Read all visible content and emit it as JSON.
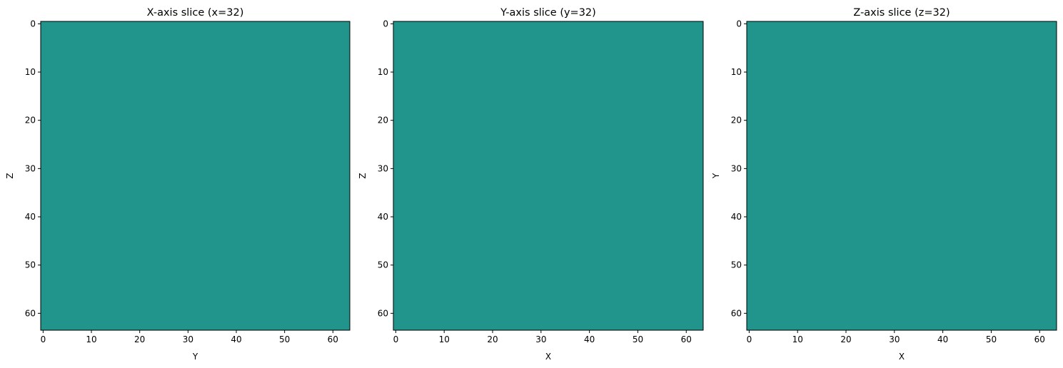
{
  "chart_data": [
    {
      "type": "heatmap",
      "title": "X-axis slice (x=32)",
      "xlabel": "Y",
      "ylabel": "Z",
      "xlim": [
        -0.5,
        63.5
      ],
      "ylim": [
        63.5,
        -0.5
      ],
      "x_ticks": [
        0,
        10,
        20,
        30,
        40,
        50,
        60
      ],
      "y_ticks": [
        0,
        10,
        20,
        30,
        40,
        50,
        60
      ],
      "grid": false,
      "fill_color": "#21948c"
    },
    {
      "type": "heatmap",
      "title": "Y-axis slice (y=32)",
      "xlabel": "X",
      "ylabel": "Z",
      "xlim": [
        -0.5,
        63.5
      ],
      "ylim": [
        63.5,
        -0.5
      ],
      "x_ticks": [
        0,
        10,
        20,
        30,
        40,
        50,
        60
      ],
      "y_ticks": [
        0,
        10,
        20,
        30,
        40,
        50,
        60
      ],
      "grid": false,
      "fill_color": "#21948c"
    },
    {
      "type": "heatmap",
      "title": "Z-axis slice (z=32)",
      "xlabel": "X",
      "ylabel": "Y",
      "xlim": [
        -0.5,
        63.5
      ],
      "ylim": [
        63.5,
        -0.5
      ],
      "x_ticks": [
        0,
        10,
        20,
        30,
        40,
        50,
        60
      ],
      "y_ticks": [
        0,
        10,
        20,
        30,
        40,
        50,
        60
      ],
      "grid": false,
      "fill_color": "#21948c"
    }
  ]
}
